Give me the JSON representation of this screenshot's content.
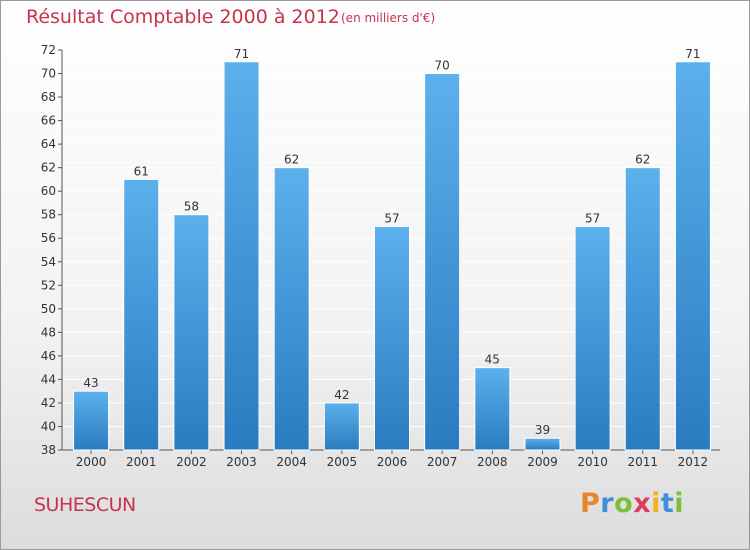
{
  "title": "Résultat Comptable 2000 à 2012",
  "unit_note": "(en milliers d'€)",
  "commune": "SUHESCUN",
  "brand": {
    "letters": [
      "P",
      "r",
      "o",
      "x",
      "i",
      "t",
      "i"
    ],
    "colors": [
      "#e8842c",
      "#3d8fd8",
      "#7bbf3a",
      "#e23b5a",
      "#f0b21f",
      "#3d8fd8",
      "#7bbf3a"
    ]
  },
  "colors": {
    "title": "#c8324e",
    "bar_top": "#5cb0ec",
    "bar_bottom": "#2a7cc0",
    "grid": "#ffffff"
  },
  "chart_data": {
    "type": "bar",
    "categories": [
      "2000",
      "2001",
      "2002",
      "2003",
      "2004",
      "2005",
      "2006",
      "2007",
      "2008",
      "2009",
      "2010",
      "2011",
      "2012"
    ],
    "values": [
      43,
      61,
      58,
      71,
      62,
      42,
      57,
      70,
      45,
      39,
      57,
      62,
      71
    ],
    "ylim": [
      38,
      72
    ],
    "yticks": [
      38,
      40,
      42,
      44,
      46,
      48,
      50,
      52,
      54,
      56,
      58,
      60,
      62,
      64,
      66,
      68,
      70,
      72
    ],
    "grid": true,
    "data_labels": true
  }
}
